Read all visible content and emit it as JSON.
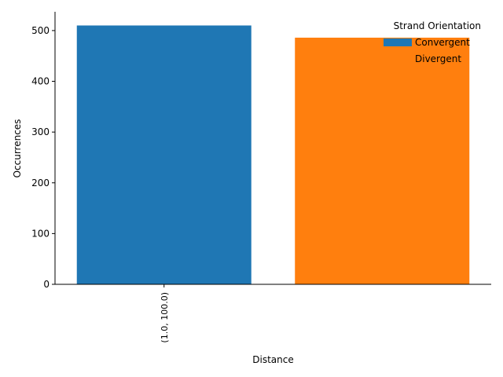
{
  "chart_data": {
    "type": "bar",
    "xlabel": "Distance",
    "ylabel": "Occurrences",
    "categories": [
      "(1.0, 100.0)"
    ],
    "ylim": [
      0,
      537
    ],
    "yticks": [
      0,
      100,
      200,
      300,
      400,
      500
    ],
    "legend": {
      "title": "Strand Orientation",
      "placement": "top-right",
      "frame": false
    },
    "series": [
      {
        "name": "Convergent",
        "values": [
          510
        ],
        "color": "#1f77b4"
      },
      {
        "name": "Divergent",
        "values": [
          486
        ],
        "color": "#ff7f0e"
      }
    ],
    "grid": false,
    "spines": [
      "left",
      "bottom"
    ]
  }
}
